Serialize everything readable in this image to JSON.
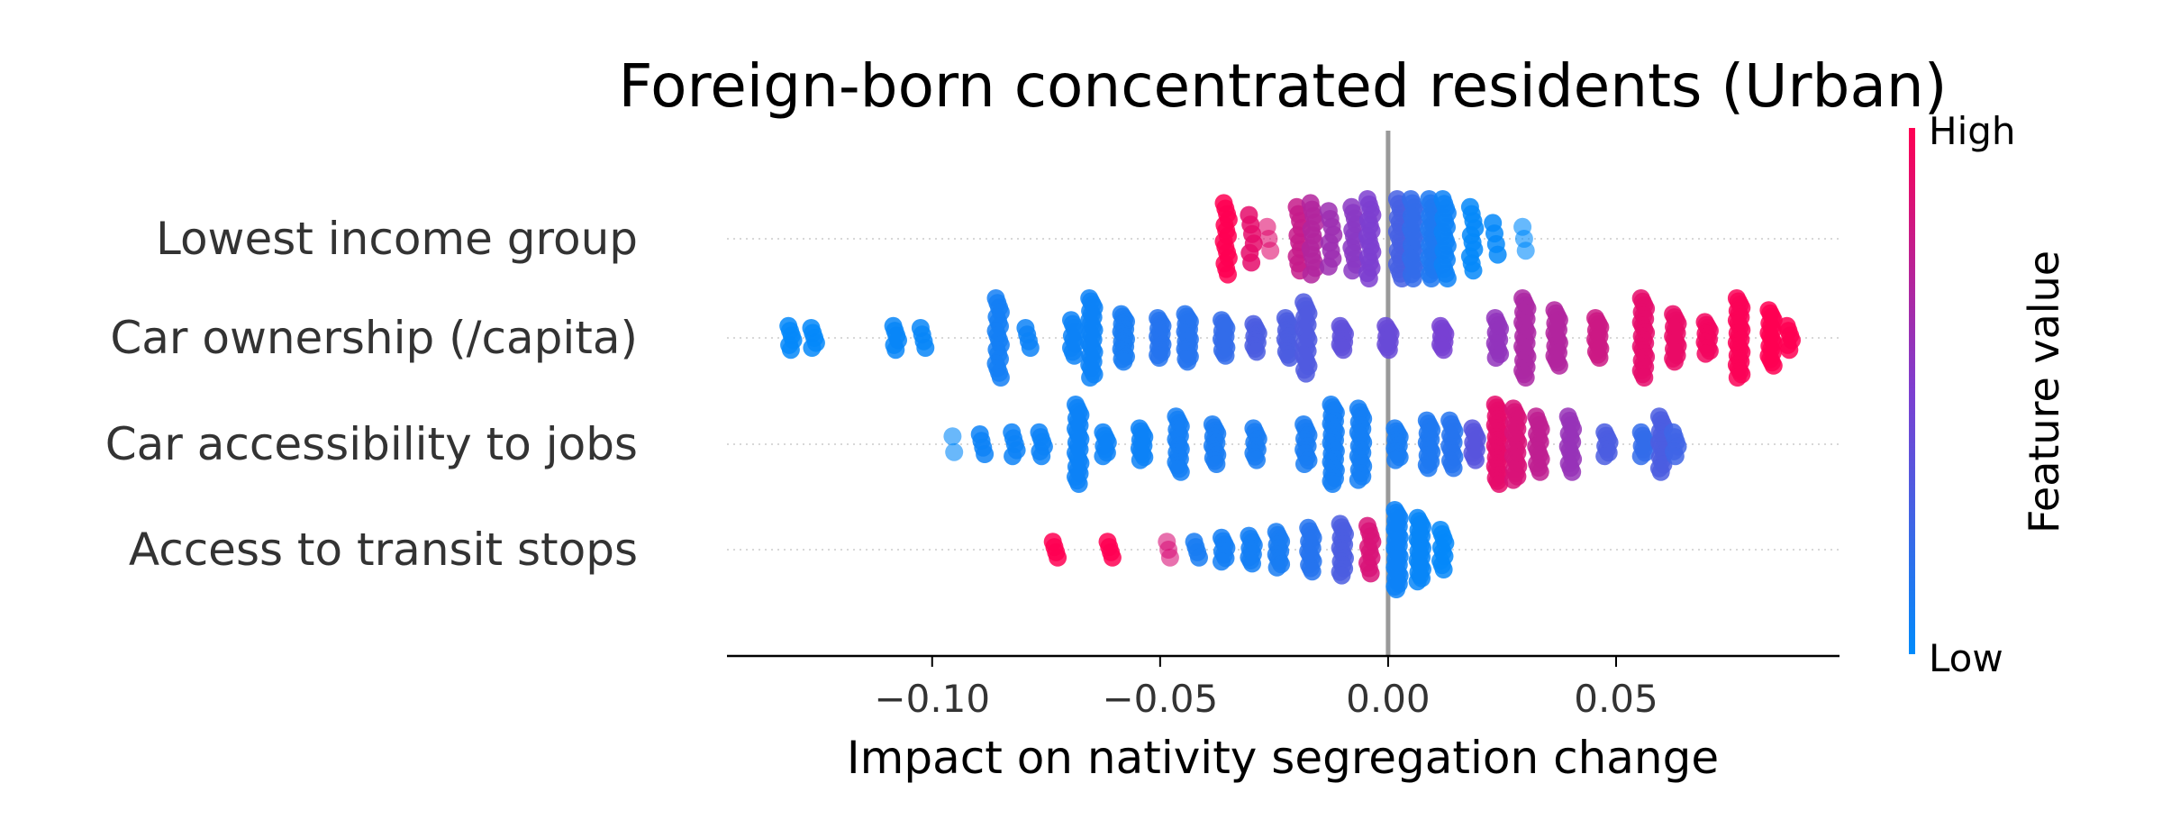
{
  "chart_data": {
    "type": "scatter",
    "subtype": "beeswarm",
    "title": "Foreign-born concentrated residents (Urban)",
    "xlabel": "Impact on nativity segregation change",
    "xlim": [
      -0.145,
      0.099
    ],
    "xticks": [
      {
        "value": -0.1,
        "label": "−0.10"
      },
      {
        "value": -0.05,
        "label": "−0.05"
      },
      {
        "value": 0.0,
        "label": "0.00"
      },
      {
        "value": 0.05,
        "label": "0.05"
      }
    ],
    "zero_line": 0.0,
    "grid": false,
    "colorbar": {
      "label": "Feature value",
      "high": "High",
      "low": "Low",
      "placement": "right"
    },
    "colors": {
      "low": "#008bfb",
      "mid": "#7d3ed0",
      "high": "#ff0052",
      "zero_line": "#999999",
      "axis": "#000000",
      "row_guide": "#cccccc"
    },
    "features": [
      {
        "name": "Lowest income group",
        "range": [
          -0.036,
          0.031
        ],
        "segments": [
          {
            "x": -0.0355,
            "count": 14,
            "spread": 0.9,
            "fv": 1.0
          },
          {
            "x": -0.03,
            "count": 6,
            "spread": 0.6,
            "fv": 0.9
          },
          {
            "x": -0.026,
            "count": 3,
            "spread": 0.3,
            "fv": 0.88
          },
          {
            "x": -0.0195,
            "count": 10,
            "spread": 0.8,
            "fv": 0.78
          },
          {
            "x": -0.0165,
            "count": 12,
            "spread": 0.9,
            "fv": 0.7
          },
          {
            "x": -0.0125,
            "count": 8,
            "spread": 0.7,
            "fv": 0.62
          },
          {
            "x": -0.0075,
            "count": 12,
            "spread": 0.8,
            "fv": 0.55
          },
          {
            "x": -0.004,
            "count": 16,
            "spread": 1.0,
            "fv": 0.5
          },
          {
            "x": 0.0025,
            "count": 18,
            "spread": 1.0,
            "fv": 0.28
          },
          {
            "x": 0.0055,
            "count": 20,
            "spread": 1.0,
            "fv": 0.2
          },
          {
            "x": 0.0095,
            "count": 20,
            "spread": 1.0,
            "fv": 0.12
          },
          {
            "x": 0.0125,
            "count": 18,
            "spread": 1.0,
            "fv": 0.05
          },
          {
            "x": 0.0185,
            "count": 10,
            "spread": 0.8,
            "fv": 0.02
          },
          {
            "x": 0.0235,
            "count": 4,
            "spread": 0.4,
            "fv": 0.02
          },
          {
            "x": 0.03,
            "count": 3,
            "spread": 0.3,
            "fv": 0.0
          }
        ]
      },
      {
        "name": "Car ownership (/capita)",
        "range": [
          -0.134,
          0.089
        ],
        "segments": [
          {
            "x": -0.131,
            "count": 6,
            "spread": 0.3,
            "fv": 0.02
          },
          {
            "x": -0.126,
            "count": 5,
            "spread": 0.25,
            "fv": 0.02
          },
          {
            "x": -0.108,
            "count": 6,
            "spread": 0.3,
            "fv": 0.03
          },
          {
            "x": -0.102,
            "count": 4,
            "spread": 0.25,
            "fv": 0.03
          },
          {
            "x": -0.0855,
            "count": 18,
            "spread": 1.0,
            "fv": 0.08
          },
          {
            "x": -0.079,
            "count": 4,
            "spread": 0.25,
            "fv": 0.05
          },
          {
            "x": -0.069,
            "count": 10,
            "spread": 0.45,
            "fv": 0.05
          },
          {
            "x": -0.065,
            "count": 26,
            "spread": 1.0,
            "fv": 0.05
          },
          {
            "x": -0.058,
            "count": 20,
            "spread": 0.6,
            "fv": 0.1
          },
          {
            "x": -0.05,
            "count": 16,
            "spread": 0.5,
            "fv": 0.15
          },
          {
            "x": -0.044,
            "count": 20,
            "spread": 0.6,
            "fv": 0.15
          },
          {
            "x": -0.036,
            "count": 14,
            "spread": 0.45,
            "fv": 0.2
          },
          {
            "x": -0.029,
            "count": 10,
            "spread": 0.35,
            "fv": 0.3
          },
          {
            "x": -0.022,
            "count": 14,
            "spread": 0.5,
            "fv": 0.3
          },
          {
            "x": -0.018,
            "count": 20,
            "spread": 0.9,
            "fv": 0.32
          },
          {
            "x": -0.01,
            "count": 10,
            "spread": 0.3,
            "fv": 0.38
          },
          {
            "x": 0.0,
            "count": 10,
            "spread": 0.3,
            "fv": 0.42
          },
          {
            "x": 0.012,
            "count": 10,
            "spread": 0.3,
            "fv": 0.48
          },
          {
            "x": 0.024,
            "count": 12,
            "spread": 0.5,
            "fv": 0.58
          },
          {
            "x": 0.03,
            "count": 24,
            "spread": 1.0,
            "fv": 0.68
          },
          {
            "x": 0.037,
            "count": 18,
            "spread": 0.7,
            "fv": 0.7
          },
          {
            "x": 0.046,
            "count": 14,
            "spread": 0.5,
            "fv": 0.8
          },
          {
            "x": 0.056,
            "count": 24,
            "spread": 1.0,
            "fv": 0.9
          },
          {
            "x": 0.063,
            "count": 16,
            "spread": 0.6,
            "fv": 0.92
          },
          {
            "x": 0.07,
            "count": 12,
            "spread": 0.4,
            "fv": 0.95
          },
          {
            "x": 0.077,
            "count": 26,
            "spread": 1.0,
            "fv": 0.98
          },
          {
            "x": 0.084,
            "count": 18,
            "spread": 0.7,
            "fv": 1.0
          },
          {
            "x": 0.088,
            "count": 6,
            "spread": 0.3,
            "fv": 1.0
          }
        ]
      },
      {
        "name": "Car accessibility to jobs",
        "range": [
          -0.096,
          0.064
        ],
        "segments": [
          {
            "x": -0.095,
            "count": 2,
            "spread": 0.2,
            "fv": 0.02
          },
          {
            "x": -0.089,
            "count": 4,
            "spread": 0.25,
            "fv": 0.05
          },
          {
            "x": -0.082,
            "count": 5,
            "spread": 0.3,
            "fv": 0.05
          },
          {
            "x": -0.076,
            "count": 6,
            "spread": 0.3,
            "fv": 0.05
          },
          {
            "x": -0.068,
            "count": 24,
            "spread": 1.0,
            "fv": 0.05
          },
          {
            "x": -0.062,
            "count": 8,
            "spread": 0.3,
            "fv": 0.05
          },
          {
            "x": -0.054,
            "count": 12,
            "spread": 0.4,
            "fv": 0.05
          },
          {
            "x": -0.046,
            "count": 18,
            "spread": 0.7,
            "fv": 0.08
          },
          {
            "x": -0.038,
            "count": 14,
            "spread": 0.5,
            "fv": 0.1
          },
          {
            "x": -0.029,
            "count": 10,
            "spread": 0.4,
            "fv": 0.1
          },
          {
            "x": -0.018,
            "count": 12,
            "spread": 0.5,
            "fv": 0.1
          },
          {
            "x": -0.012,
            "count": 30,
            "spread": 1.0,
            "fv": 0.08
          },
          {
            "x": -0.006,
            "count": 22,
            "spread": 0.9,
            "fv": 0.08
          },
          {
            "x": 0.002,
            "count": 12,
            "spread": 0.4,
            "fv": 0.1
          },
          {
            "x": 0.009,
            "count": 16,
            "spread": 0.6,
            "fv": 0.12
          },
          {
            "x": 0.014,
            "count": 14,
            "spread": 0.6,
            "fv": 0.15
          },
          {
            "x": 0.019,
            "count": 10,
            "spread": 0.4,
            "fv": 0.35
          },
          {
            "x": 0.024,
            "count": 28,
            "spread": 1.0,
            "fv": 0.9
          },
          {
            "x": 0.028,
            "count": 22,
            "spread": 0.9,
            "fv": 0.85
          },
          {
            "x": 0.033,
            "count": 14,
            "spread": 0.7,
            "fv": 0.75
          },
          {
            "x": 0.04,
            "count": 14,
            "spread": 0.7,
            "fv": 0.6
          },
          {
            "x": 0.048,
            "count": 8,
            "spread": 0.3,
            "fv": 0.3
          },
          {
            "x": 0.056,
            "count": 8,
            "spread": 0.3,
            "fv": 0.2
          },
          {
            "x": 0.06,
            "count": 16,
            "spread": 0.7,
            "fv": 0.3
          },
          {
            "x": 0.063,
            "count": 6,
            "spread": 0.3,
            "fv": 0.25
          }
        ]
      },
      {
        "name": "Access to transit stops",
        "range": [
          -0.074,
          0.014
        ],
        "segments": [
          {
            "x": -0.073,
            "count": 4,
            "spread": 0.2,
            "fv": 1.0
          },
          {
            "x": -0.061,
            "count": 4,
            "spread": 0.2,
            "fv": 1.0
          },
          {
            "x": -0.048,
            "count": 3,
            "spread": 0.2,
            "fv": 0.85
          },
          {
            "x": -0.042,
            "count": 4,
            "spread": 0.2,
            "fv": 0.1
          },
          {
            "x": -0.036,
            "count": 8,
            "spread": 0.3,
            "fv": 0.08
          },
          {
            "x": -0.03,
            "count": 10,
            "spread": 0.35,
            "fv": 0.08
          },
          {
            "x": -0.024,
            "count": 12,
            "spread": 0.45,
            "fv": 0.1
          },
          {
            "x": -0.017,
            "count": 14,
            "spread": 0.55,
            "fv": 0.15
          },
          {
            "x": -0.01,
            "count": 16,
            "spread": 0.65,
            "fv": 0.3
          },
          {
            "x": -0.004,
            "count": 10,
            "spread": 0.6,
            "fv": 0.85
          },
          {
            "x": 0.002,
            "count": 30,
            "spread": 1.0,
            "fv": 0.05
          },
          {
            "x": 0.007,
            "count": 22,
            "spread": 0.8,
            "fv": 0.03
          },
          {
            "x": 0.012,
            "count": 10,
            "spread": 0.5,
            "fv": 0.02
          }
        ]
      }
    ]
  }
}
